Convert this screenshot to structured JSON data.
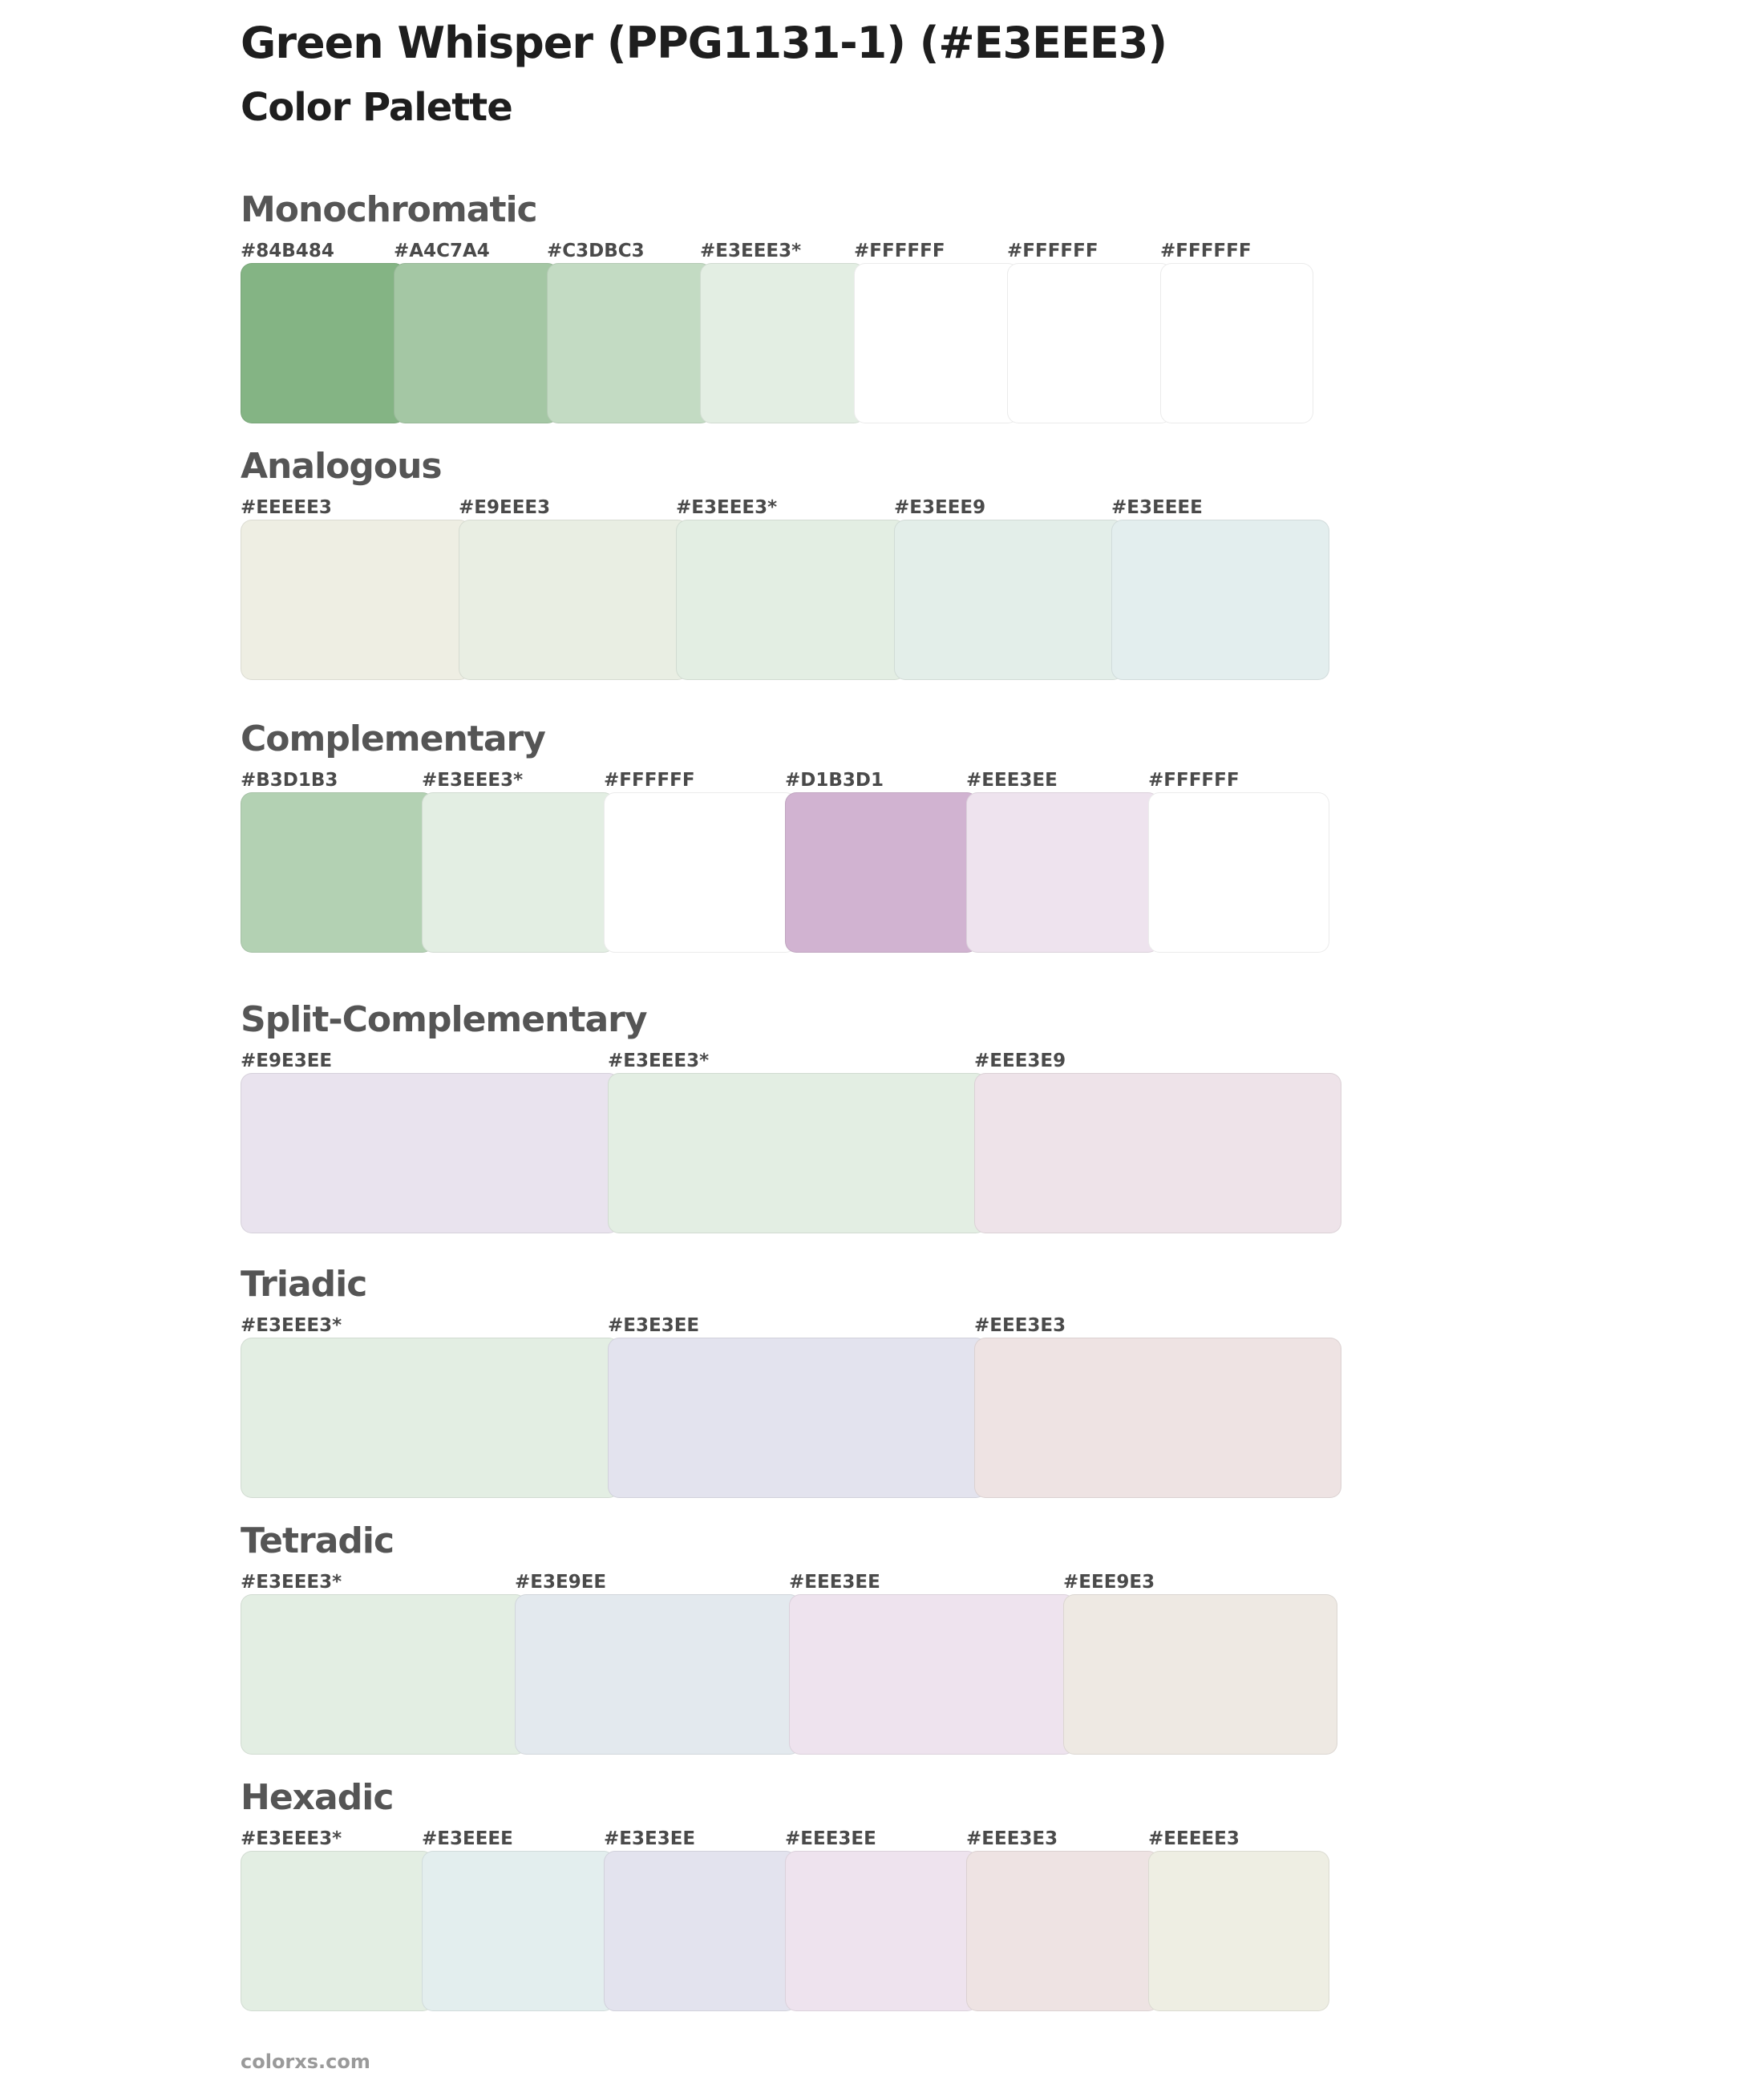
{
  "title": "Green Whisper (PPG1131-1) (#E3EEE3)",
  "subtitle": "Color Palette",
  "footer": "colorxs.com",
  "sections": [
    {
      "name": "Monochromatic",
      "colors": [
        {
          "label": "#84B484",
          "hex": "#84B484"
        },
        {
          "label": "#A4C7A4",
          "hex": "#A4C7A4"
        },
        {
          "label": "#C3DBC3",
          "hex": "#C3DBC3"
        },
        {
          "label": "#E3EEE3*",
          "hex": "#E3EEE3"
        },
        {
          "label": "#FFFFFF",
          "hex": "#FFFFFF"
        },
        {
          "label": "#FFFFFF",
          "hex": "#FFFFFF"
        },
        {
          "label": "#FFFFFF",
          "hex": "#FFFFFF"
        }
      ]
    },
    {
      "name": "Analogous",
      "colors": [
        {
          "label": "#EEEEE3",
          "hex": "#EEEEE3"
        },
        {
          "label": "#E9EEE3",
          "hex": "#E9EEE3"
        },
        {
          "label": "#E3EEE3*",
          "hex": "#E3EEE3"
        },
        {
          "label": "#E3EEE9",
          "hex": "#E3EEE9"
        },
        {
          "label": "#E3EEEE",
          "hex": "#E3EEEE"
        }
      ]
    },
    {
      "name": "Complementary",
      "colors": [
        {
          "label": "#B3D1B3",
          "hex": "#B3D1B3"
        },
        {
          "label": "#E3EEE3*",
          "hex": "#E3EEE3"
        },
        {
          "label": "#FFFFFF",
          "hex": "#FFFFFF"
        },
        {
          "label": "#D1B3D1",
          "hex": "#D1B3D1"
        },
        {
          "label": "#EEE3EE",
          "hex": "#EEE3EE"
        },
        {
          "label": "#FFFFFF",
          "hex": "#FFFFFF"
        }
      ]
    },
    {
      "name": "Split-Complementary",
      "colors": [
        {
          "label": "#E9E3EE",
          "hex": "#E9E3EE"
        },
        {
          "label": "#E3EEE3*",
          "hex": "#E3EEE3"
        },
        {
          "label": "#EEE3E9",
          "hex": "#EEE3E9"
        }
      ]
    },
    {
      "name": "Triadic",
      "colors": [
        {
          "label": "#E3EEE3*",
          "hex": "#E3EEE3"
        },
        {
          "label": "#E3E3EE",
          "hex": "#E3E3EE"
        },
        {
          "label": "#EEE3E3",
          "hex": "#EEE3E3"
        }
      ]
    },
    {
      "name": "Tetradic",
      "colors": [
        {
          "label": "#E3EEE3*",
          "hex": "#E3EEE3"
        },
        {
          "label": "#E3E9EE",
          "hex": "#E3E9EE"
        },
        {
          "label": "#EEE3EE",
          "hex": "#EEE3EE"
        },
        {
          "label": "#EEE9E3",
          "hex": "#EEE9E3"
        }
      ]
    },
    {
      "name": "Hexadic",
      "colors": [
        {
          "label": "#E3EEE3*",
          "hex": "#E3EEE3"
        },
        {
          "label": "#E3EEEE",
          "hex": "#E3EEEE"
        },
        {
          "label": "#E3E3EE",
          "hex": "#E3E3EE"
        },
        {
          "label": "#EEE3EE",
          "hex": "#EEE3EE"
        },
        {
          "label": "#EEE3E3",
          "hex": "#EEE3E3"
        },
        {
          "label": "#EEEEE3",
          "hex": "#EEEEE3"
        }
      ]
    }
  ]
}
